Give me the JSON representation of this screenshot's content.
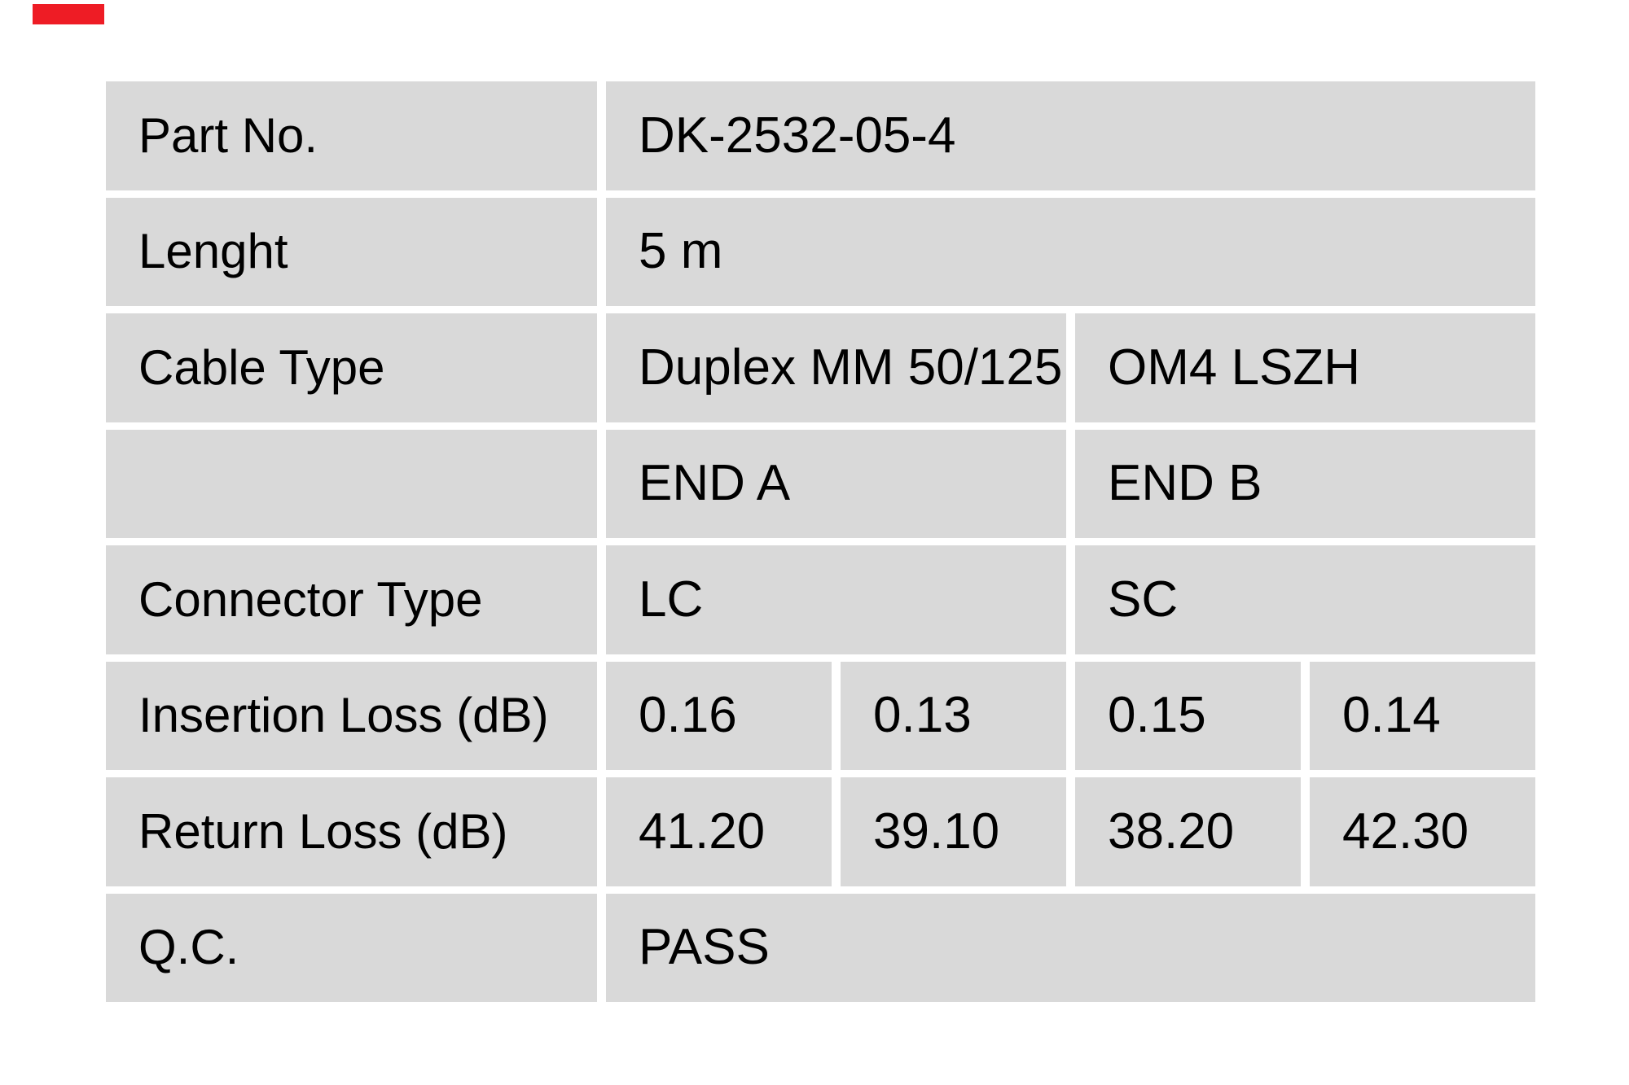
{
  "colors": {
    "page_background": "#ffffff",
    "cell_background": "#d9d9d9",
    "cell_gap": "#ffffff",
    "text": "#000000",
    "red_mark": "#ee1c25"
  },
  "table": {
    "rows": [
      {
        "label": "Part No.",
        "cells": [
          {
            "text": "DK-2532-05-4"
          }
        ]
      },
      {
        "label": "Lenght",
        "cells": [
          {
            "text": "5 m"
          }
        ]
      },
      {
        "label": "Cable Type",
        "cells": [
          {
            "text": "Duplex MM 50/125"
          },
          {
            "text": "OM4 LSZH"
          }
        ]
      },
      {
        "label": "",
        "cells": [
          {
            "text": "END A"
          },
          {
            "text": "END B"
          }
        ]
      },
      {
        "label": "Connector Type",
        "cells": [
          {
            "text": "LC"
          },
          {
            "text": "SC"
          }
        ]
      },
      {
        "label": "Insertion Loss (dB)",
        "cells": [
          {
            "text": "0.16"
          },
          {
            "text": "0.13"
          },
          {
            "text": "0.15"
          },
          {
            "text": "0.14"
          }
        ]
      },
      {
        "label": "Return Loss (dB)",
        "cells": [
          {
            "text": "41.20"
          },
          {
            "text": "39.10"
          },
          {
            "text": "38.20"
          },
          {
            "text": "42.30"
          }
        ]
      },
      {
        "label": "Q.C.",
        "cells": [
          {
            "text": "PASS"
          }
        ]
      }
    ]
  }
}
